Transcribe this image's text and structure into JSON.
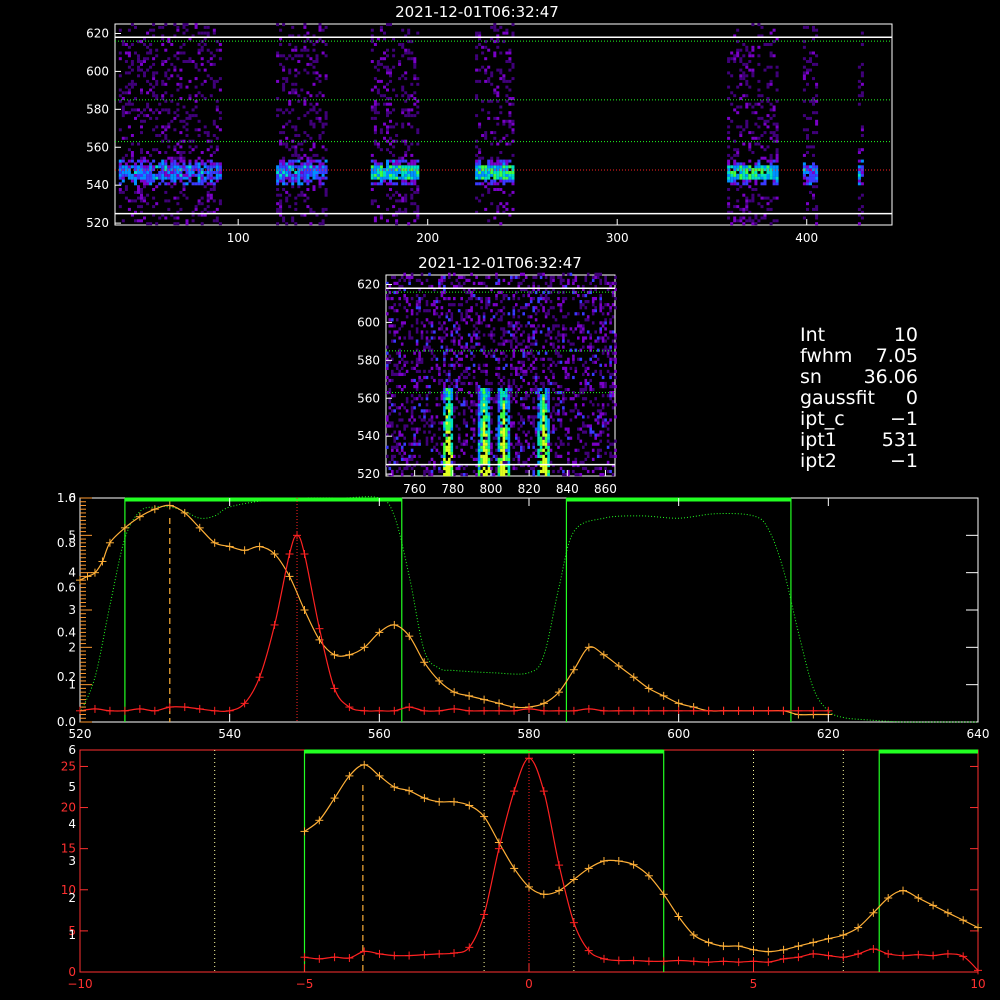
{
  "colors": {
    "frame": "#ffffff",
    "green": "#22ff22",
    "orange": "#ffb038",
    "red": "#ff2222",
    "red_axis": "#ff3030",
    "axis_orange": "#ff9a30"
  },
  "info": [
    {
      "key": "Int",
      "value": "10"
    },
    {
      "key": "fwhm",
      "value": "7.05"
    },
    {
      "key": "sn",
      "value": "36.06"
    },
    {
      "key": "gaussfit",
      "value": "0"
    },
    {
      "key": "ipt_c",
      "value": "−1"
    },
    {
      "key": "ipt1",
      "value": "531"
    },
    {
      "key": "ipt2",
      "value": "−1"
    }
  ],
  "chart_data": [
    {
      "type": "heatmap",
      "title": "2021-12-01T06:32:47",
      "xlim": [
        35,
        445
      ],
      "ylim": [
        519,
        625
      ],
      "xticks": [
        "100",
        "200",
        "300",
        "400"
      ],
      "xtick_values": [
        100,
        200,
        300,
        400
      ],
      "yticks": [
        "520",
        "540",
        "560",
        "580",
        "600",
        "620"
      ],
      "ytick_values": [
        520,
        540,
        560,
        580,
        600,
        620
      ],
      "solid_lines_y": [
        525,
        618
      ],
      "green_dotted_y": [
        563,
        585,
        616
      ],
      "red_dotted_y": [
        548
      ],
      "column_groups": [
        [
          37,
          90
        ],
        [
          120,
          147
        ],
        [
          170,
          195
        ],
        [
          225,
          245
        ],
        [
          358,
          384
        ],
        [
          398,
          406
        ],
        [
          427,
          430
        ]
      ],
      "band_center_y": 546,
      "strong_groups": [
        2,
        3,
        4
      ]
    },
    {
      "type": "heatmap",
      "title": "2021-12-01T06:32:47",
      "xlim": [
        745,
        865
      ],
      "ylim": [
        519,
        625
      ],
      "xticks": [
        "760",
        "780",
        "800",
        "820",
        "840",
        "860"
      ],
      "xtick_values": [
        760,
        780,
        800,
        820,
        840,
        860
      ],
      "yticks": [
        "520",
        "540",
        "560",
        "580",
        "600",
        "620"
      ],
      "ytick_values": [
        520,
        540,
        560,
        580,
        600,
        620
      ],
      "solid_lines_y": [
        525,
        618
      ],
      "green_dotted_y": [
        563,
        585,
        616
      ],
      "streaks_x": [
        777,
        796,
        806,
        827
      ]
    },
    {
      "type": "line",
      "xlim": [
        520,
        640
      ],
      "xticks": [
        "520",
        "540",
        "560",
        "580",
        "600",
        "620",
        "640"
      ],
      "xtick_values": [
        520,
        540,
        560,
        580,
        600,
        620,
        640
      ],
      "left_ticks_white": [
        "0.0",
        "0.2",
        "0.4",
        "0.6",
        "0.8",
        "1.0"
      ],
      "left_ticks_orange": [
        "1",
        "2",
        "3",
        "4",
        "5",
        "6"
      ],
      "green_windows": [
        [
          526,
          563
        ],
        [
          585,
          615
        ]
      ],
      "dashed_x": 532,
      "red_dotted_x": 549,
      "series": [
        {
          "color": "orange",
          "x": [
            520,
            521,
            522,
            523,
            524,
            526,
            528,
            530,
            532,
            534,
            536,
            538,
            540,
            542,
            544,
            546,
            548,
            550,
            552,
            554,
            556,
            558,
            560,
            562,
            564,
            566,
            568,
            570,
            572,
            574,
            576,
            578,
            580,
            582,
            584,
            586,
            588,
            590,
            592,
            594,
            596,
            598,
            600,
            602,
            604,
            606,
            608,
            610,
            612,
            614,
            616,
            618,
            620
          ],
          "y": [
            3.8,
            3.9,
            4.0,
            4.3,
            4.8,
            5.2,
            5.5,
            5.7,
            5.8,
            5.6,
            5.2,
            4.8,
            4.7,
            4.6,
            4.7,
            4.5,
            3.9,
            3.0,
            2.2,
            1.8,
            1.8,
            2.0,
            2.4,
            2.6,
            2.3,
            1.6,
            1.1,
            0.8,
            0.7,
            0.6,
            0.5,
            0.4,
            0.4,
            0.5,
            0.8,
            1.4,
            2.0,
            1.8,
            1.5,
            1.2,
            0.9,
            0.7,
            0.5,
            0.4,
            0.3,
            0.3,
            0.3,
            0.3,
            0.3,
            0.3,
            0.2,
            0.2,
            0.2
          ]
        },
        {
          "color": "red",
          "x": [
            520,
            522,
            524,
            526,
            528,
            530,
            532,
            534,
            536,
            538,
            540,
            542,
            544,
            546,
            548,
            549,
            550,
            552,
            554,
            556,
            558,
            560,
            562,
            564,
            566,
            568,
            570,
            572,
            574,
            576,
            578,
            580,
            582,
            584,
            586,
            588,
            590,
            592,
            594,
            596,
            598,
            600,
            602,
            604,
            606,
            608,
            610,
            612,
            614,
            616,
            618,
            620
          ],
          "y": [
            0.3,
            0.35,
            0.3,
            0.3,
            0.35,
            0.3,
            0.4,
            0.4,
            0.35,
            0.3,
            0.3,
            0.5,
            1.2,
            2.6,
            4.5,
            5.0,
            4.5,
            2.5,
            0.9,
            0.4,
            0.3,
            0.3,
            0.3,
            0.4,
            0.3,
            0.3,
            0.35,
            0.3,
            0.3,
            0.3,
            0.3,
            0.35,
            0.3,
            0.3,
            0.3,
            0.35,
            0.3,
            0.3,
            0.3,
            0.3,
            0.3,
            0.3,
            0.3,
            0.3,
            0.3,
            0.3,
            0.3,
            0.3,
            0.3,
            0.3,
            0.3,
            0.3
          ]
        },
        {
          "color": "green",
          "x": [
            520,
            522,
            524,
            526,
            528,
            530,
            532,
            534,
            536,
            538,
            540,
            545,
            550,
            555,
            560,
            562,
            564,
            566,
            568,
            570,
            575,
            580,
            582,
            584,
            586,
            590,
            595,
            600,
            605,
            610,
            612,
            614,
            616,
            618,
            620,
            622,
            625,
            630,
            635,
            640
          ],
          "y": [
            0.04,
            0.2,
            0.52,
            0.82,
            0.94,
            0.96,
            0.96,
            0.94,
            0.91,
            0.92,
            0.96,
            0.99,
            1.0,
            1.0,
            1.0,
            0.92,
            0.65,
            0.32,
            0.24,
            0.23,
            0.22,
            0.22,
            0.3,
            0.6,
            0.85,
            0.91,
            0.92,
            0.91,
            0.93,
            0.92,
            0.86,
            0.68,
            0.4,
            0.15,
            0.05,
            0.02,
            0.01,
            0.0,
            0.0,
            0.0
          ]
        }
      ]
    },
    {
      "type": "line",
      "xlim": [
        -10,
        10
      ],
      "xticks": [
        "−10",
        "−5",
        "0",
        "5",
        "10"
      ],
      "xtick_values": [
        -10,
        -5,
        0,
        5,
        10
      ],
      "left_ticks_red": [
        "0",
        "5",
        "10",
        "15",
        "20",
        "25"
      ],
      "left_ticks_orange": [
        "1",
        "2",
        "3",
        "4",
        "5",
        "6"
      ],
      "green_windows": [
        [
          -5,
          3.0
        ],
        [
          7.8,
          10
        ]
      ],
      "dashed_x": -3.7,
      "red_dotted_x": 0,
      "dotted_white_x": [
        -7,
        -1,
        1,
        5,
        7
      ],
      "series": [
        {
          "color": "orange",
          "x": [
            -5,
            -4.67,
            -4.33,
            -4,
            -3.67,
            -3.33,
            -3,
            -2.67,
            -2.33,
            -2,
            -1.67,
            -1.33,
            -1,
            -0.67,
            -0.33,
            0,
            0.33,
            0.67,
            1,
            1.33,
            1.67,
            2,
            2.33,
            2.67,
            3,
            3.33,
            3.67,
            4,
            4.33,
            4.67,
            5,
            5.33,
            5.67,
            6,
            6.33,
            6.67,
            7,
            7.33,
            7.67,
            8,
            8.33,
            8.67,
            9,
            9.33,
            9.67,
            10
          ],
          "y": [
            3.8,
            4.1,
            4.7,
            5.3,
            5.6,
            5.3,
            5.0,
            4.9,
            4.7,
            4.6,
            4.6,
            4.5,
            4.2,
            3.5,
            2.8,
            2.3,
            2.1,
            2.2,
            2.5,
            2.8,
            3.0,
            3.0,
            2.9,
            2.6,
            2.1,
            1.5,
            1.0,
            0.8,
            0.7,
            0.7,
            0.6,
            0.55,
            0.6,
            0.7,
            0.8,
            0.9,
            1.0,
            1.2,
            1.6,
            2.0,
            2.2,
            2.0,
            1.8,
            1.6,
            1.4,
            1.2
          ]
        },
        {
          "color": "red",
          "x": [
            -5,
            -4.67,
            -4.33,
            -4,
            -3.67,
            -3.33,
            -3,
            -2.67,
            -2.33,
            -2,
            -1.67,
            -1.33,
            -1,
            -0.67,
            -0.33,
            0,
            0.33,
            0.67,
            1,
            1.33,
            1.67,
            2,
            2.33,
            2.67,
            3,
            3.33,
            3.67,
            4,
            4.33,
            4.67,
            5,
            5.33,
            5.67,
            6,
            6.33,
            6.67,
            7,
            7.33,
            7.67,
            8,
            8.33,
            8.67,
            9,
            9.33,
            9.67,
            10
          ],
          "y": [
            1.8,
            1.6,
            1.8,
            1.7,
            2.5,
            2.2,
            2.0,
            2.0,
            2.1,
            2.2,
            2.3,
            3.0,
            7.0,
            15.0,
            22.0,
            26.0,
            22.0,
            13.0,
            6.0,
            2.6,
            1.6,
            1.4,
            1.4,
            1.3,
            1.3,
            1.4,
            1.3,
            1.2,
            1.3,
            1.2,
            1.3,
            1.2,
            1.6,
            1.8,
            2.2,
            2.0,
            1.8,
            2.2,
            2.8,
            2.2,
            2.0,
            2.1,
            2.0,
            2.2,
            1.9,
            0.2
          ]
        }
      ]
    }
  ]
}
